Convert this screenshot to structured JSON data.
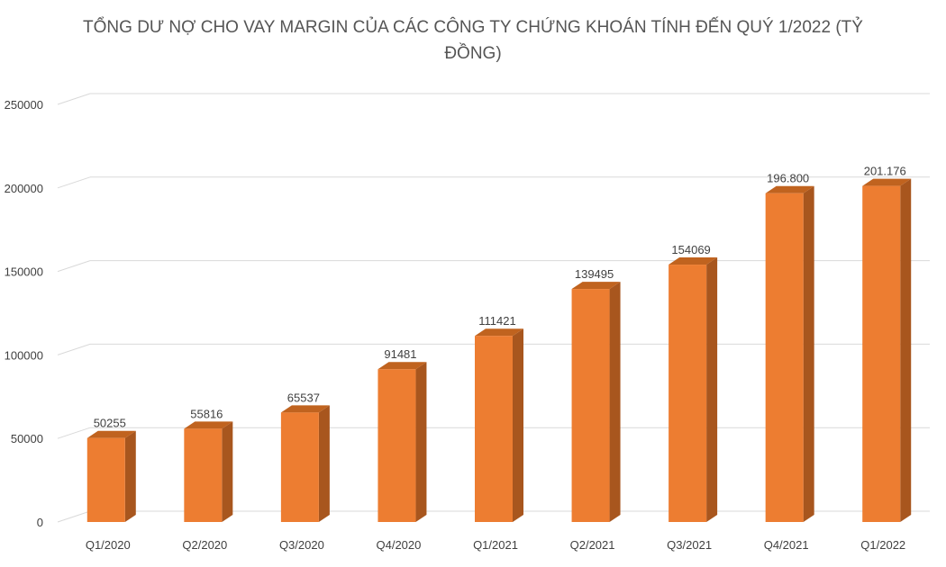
{
  "chart_data": {
    "type": "bar",
    "title": "TỔNG DƯ NỢ CHO VAY MARGIN CỦA CÁC CÔNG TY CHỨNG KHOÁN TÍNH ĐẾN QUÝ 1/2022 (TỶ ĐỒNG)",
    "xlabel": "",
    "ylabel": "",
    "ylim": [
      0,
      250000
    ],
    "yticks": [
      "0",
      "50000",
      "100000",
      "150000",
      "200000",
      "250000"
    ],
    "categories": [
      "Q1/2020",
      "Q2/2020",
      "Q3/2020",
      "Q4/2020",
      "Q1/2021",
      "Q2/2021",
      "Q3/2021",
      "Q4/2021",
      "Q1/2022"
    ],
    "values": [
      50255,
      55816,
      65537,
      91481,
      111421,
      139495,
      154069,
      196800,
      201176
    ],
    "data_labels": [
      "50255",
      "55816",
      "65537",
      "91481",
      "111421",
      "139495",
      "154069",
      "196.800",
      "201.176"
    ],
    "grid": true,
    "legend": "none",
    "colors": {
      "bar_front": "#ED7D31",
      "bar_side": "#A8561E",
      "bar_top": "#C0631F",
      "grid": "#D9D9D9",
      "text": "#404040"
    }
  }
}
